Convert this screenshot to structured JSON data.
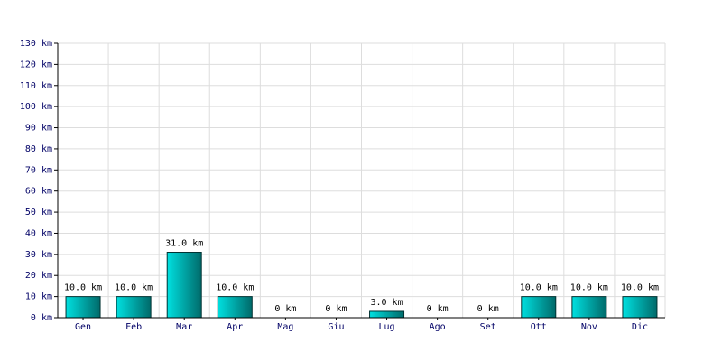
{
  "chart_data": {
    "type": "bar",
    "categories": [
      "Gen",
      "Feb",
      "Mar",
      "Apr",
      "Mag",
      "Giu",
      "Lug",
      "Ago",
      "Set",
      "Ott",
      "Nov",
      "Dic"
    ],
    "values": [
      10,
      10,
      31,
      10,
      0,
      0,
      3,
      0,
      0,
      10,
      10,
      10
    ],
    "value_labels": [
      "10.0 km",
      "10.0 km",
      "31.0 km",
      "10.0 km",
      "0 km",
      "0 km",
      "3.0 km",
      "0 km",
      "0 km",
      "10.0 km",
      "10.0 km",
      "10.0 km"
    ],
    "color": "#00e0e0",
    "ylim": [
      0,
      130
    ],
    "yticks": [
      {
        "value": 0,
        "label": "0 km"
      },
      {
        "value": 10,
        "label": "10 km"
      },
      {
        "value": 20,
        "label": "20 km"
      },
      {
        "value": 30,
        "label": "30 km"
      },
      {
        "value": 40,
        "label": "40 km"
      },
      {
        "value": 50,
        "label": "50 km"
      },
      {
        "value": 60,
        "label": "60 km"
      },
      {
        "value": 70,
        "label": "70 km"
      },
      {
        "value": 80,
        "label": "80 km"
      },
      {
        "value": 90,
        "label": "90 km"
      },
      {
        "value": 100,
        "label": "100 km"
      },
      {
        "value": 110,
        "label": "110 km"
      },
      {
        "value": 120,
        "label": "120 km"
      },
      {
        "value": 130,
        "label": "130 km"
      }
    ],
    "grid": true
  }
}
